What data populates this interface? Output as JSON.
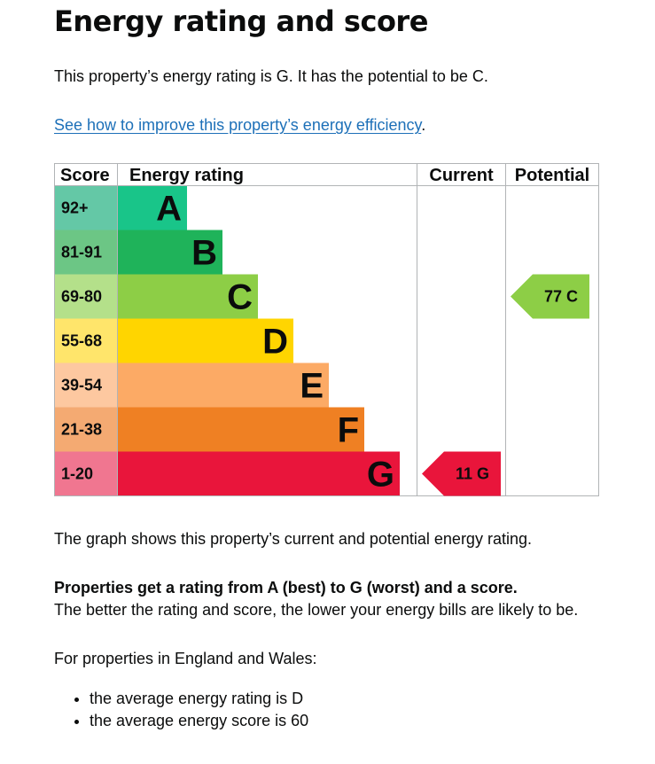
{
  "page": {
    "title": "Energy rating and score",
    "intro": "This property’s energy rating is G. It has the potential to be C.",
    "improve_link": "See how to improve this property’s energy efficiency",
    "improve_link_suffix": ".",
    "graph_text": "The graph shows this property’s current and potential energy rating.",
    "props_bold": "Properties get a rating from A (best) to G (worst) and a score.",
    "props_rest": " The better the rating and score, the lower your energy bills are likely to be.",
    "england_intro": "For properties in England and Wales:",
    "averages": [
      "the average energy rating is D",
      "the average energy score is 60"
    ]
  },
  "chart_data": {
    "type": "bar",
    "headers": {
      "score": "Score",
      "rating": "Energy rating",
      "current": "Current",
      "potential": "Potential"
    },
    "bands": [
      {
        "letter": "A",
        "range": "92+",
        "color": "#19c589",
        "score_color": "#64c8a6",
        "letter_color": "#0b0c0c"
      },
      {
        "letter": "B",
        "range": "81-91",
        "color": "#1fb35a",
        "score_color": "#6cc685",
        "letter_color": "#0b0c0c"
      },
      {
        "letter": "C",
        "range": "69-80",
        "color": "#8dce46",
        "score_color": "#b4e08a",
        "letter_color": "#0b0c0c"
      },
      {
        "letter": "D",
        "range": "55-68",
        "color": "#ffd500",
        "score_color": "#ffe56b",
        "letter_color": "#0b0c0c"
      },
      {
        "letter": "E",
        "range": "39-54",
        "color": "#fcaa65",
        "score_color": "#fdc8a0",
        "letter_color": "#0b0c0c"
      },
      {
        "letter": "F",
        "range": "21-38",
        "color": "#ef8023",
        "score_color": "#f4aa72",
        "letter_color": "#0b0c0c"
      },
      {
        "letter": "G",
        "range": "1-20",
        "color": "#e9153b",
        "score_color": "#f07690",
        "letter_color": "#0b0c0c"
      }
    ],
    "current": {
      "score": 11,
      "rating": "G",
      "label": "11  G",
      "color": "#e9153b",
      "text_color": "#0b0c0c"
    },
    "potential": {
      "score": 77,
      "rating": "C",
      "label": "77  C",
      "color": "#8dce46",
      "text_color": "#0b0c0c"
    },
    "link_color": "#1d70b8"
  }
}
